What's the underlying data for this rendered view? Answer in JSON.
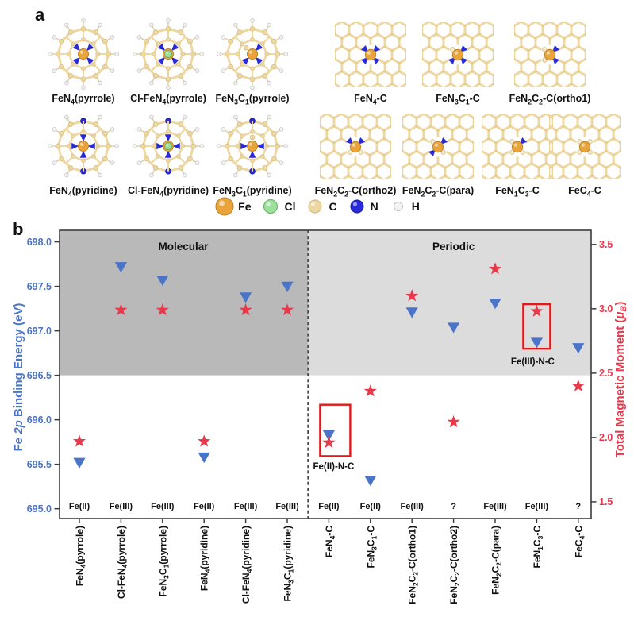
{
  "panel_a": {
    "label": "a",
    "rows": [
      {
        "items": [
          {
            "label": "FeN4(pyrrole)",
            "kind": "porphyrin",
            "ring": "pyrrole",
            "inner_n": 4,
            "cl": false
          },
          {
            "label": "Cl-FeN4(pyrrole)",
            "kind": "porphyrin",
            "ring": "pyrrole",
            "inner_n": 4,
            "cl": true
          },
          {
            "label": "FeN3C1(pyrrole)",
            "kind": "porphyrin",
            "ring": "pyrrole",
            "inner_n": 3,
            "cl": false
          },
          {
            "label": "FeN4-C",
            "kind": "graphene",
            "n_sites": [
              "NE",
              "NW",
              "SW",
              "SE"
            ]
          },
          {
            "label": "FeN3C1-C",
            "kind": "graphene",
            "n_sites": [
              "NE",
              "SW",
              "SE"
            ]
          },
          {
            "label": "FeN2C2-C(ortho1)",
            "kind": "graphene",
            "n_sites": [
              "NE",
              "SE"
            ]
          }
        ]
      },
      {
        "items": [
          {
            "label": "FeN4(pyridine)",
            "kind": "porphyrin",
            "ring": "pyridine",
            "inner_n": 4,
            "cl": false
          },
          {
            "label": "Cl-FeN4(pyridine)",
            "kind": "porphyrin",
            "ring": "pyridine",
            "inner_n": 4,
            "cl": true
          },
          {
            "label": "FeN3C1(pyridine)",
            "kind": "porphyrin",
            "ring": "pyridine",
            "inner_n": 3,
            "cl": false
          },
          {
            "label": "FeN2C2-C(ortho2)",
            "kind": "graphene",
            "n_sites": [
              "NW",
              "NE"
            ]
          },
          {
            "label": "FeN2C2-C(para)",
            "kind": "graphene",
            "n_sites": [
              "NE",
              "SW"
            ]
          },
          {
            "label": "FeN1C3-C",
            "kind": "graphene",
            "n_sites": [
              "NE"
            ]
          },
          {
            "label": "FeC4-C",
            "kind": "graphene",
            "n_sites": []
          }
        ]
      }
    ],
    "legend": [
      {
        "label": "Fe",
        "color": "#e9a53b",
        "stroke": "#bd8426",
        "r": 11
      },
      {
        "label": "Cl",
        "color": "#9ce09c",
        "stroke": "#63b063",
        "r": 8.5
      },
      {
        "label": "C",
        "color": "#ecd8a2",
        "stroke": "#cdb174",
        "r": 8
      },
      {
        "label": "N",
        "color": "#2a2ad6",
        "stroke": "#1b1b9e",
        "r": 8
      },
      {
        "label": "H",
        "color": "#f2f2f2",
        "stroke": "#bfbfbf",
        "r": 5.5
      }
    ],
    "atom_colors": {
      "Fe": "#e9a53b",
      "Cl": "#9ce09c",
      "C": "#ecd8a2",
      "N": "#2a2ad6",
      "H": "#f2f2f2",
      "bond": "#eed7a0"
    }
  },
  "panel_b": {
    "label": "b",
    "chart_data": {
      "type": "scatter",
      "categories": [
        "FeN4(pyrrole)",
        "Cl-FeN4(pyrrole)",
        "FeN3C1(pyrrole)",
        "FeN4(pyridine)",
        "Cl-FeN4(pyridine)",
        "FeN3C1(pyridine)",
        "FeN4-C",
        "FeN3C1-C",
        "FeN2C2-C(ortho1)",
        "FeN2C2-C(ortho2)",
        "FeN2C2-C(para)",
        "FeN1C3-C",
        "FeC4-C"
      ],
      "oxidation_labels": [
        "Fe(II)",
        "Fe(III)",
        "Fe(III)",
        "Fe(II)",
        "Fe(III)",
        "Fe(III)",
        "Fe(II)",
        "Fe(II)",
        "Fe(III)",
        "?",
        "Fe(III)",
        "Fe(III)",
        "?"
      ],
      "regions": [
        {
          "label": "Molecular",
          "span": [
            0,
            5
          ],
          "shade": "#b9b9b9"
        },
        {
          "label": "Periodic",
          "span": [
            6,
            12
          ],
          "shade": "#dcdcdc"
        }
      ],
      "shade_lower_limit_left_axis": 696.5,
      "series": [
        {
          "name": "Fe 2p Binding Energy (eV)",
          "axis": "left",
          "marker": "triangle-down",
          "color": "#4a74c8",
          "values": [
            695.52,
            697.72,
            697.57,
            695.58,
            697.38,
            697.5,
            695.83,
            695.32,
            697.21,
            697.04,
            697.31,
            696.87,
            696.81
          ]
        },
        {
          "name": "Total Magnetic Moment (μB)",
          "axis": "right",
          "marker": "star",
          "color": "#e8394b",
          "values": [
            1.97,
            2.99,
            2.99,
            1.97,
            2.99,
            2.99,
            1.96,
            2.36,
            3.1,
            2.12,
            3.31,
            2.98,
            2.4
          ]
        }
      ],
      "left_axis": {
        "title": {
          "pre": "Fe ",
          "italic": "2p",
          "post": " Binding Energy (eV)"
        },
        "color": "#4a74c8",
        "ticks": [
          695.0,
          695.5,
          696.0,
          696.5,
          697.0,
          697.5,
          698.0
        ],
        "range": [
          694.89,
          698.13
        ]
      },
      "right_axis": {
        "title": {
          "pre": "Total Magnetic Moment (",
          "italic": "μ",
          "sub": "B",
          "post": ")"
        },
        "color": "#e8394b",
        "ticks": [
          1.5,
          2.0,
          2.5,
          3.0,
          3.5
        ],
        "range": [
          1.37,
          3.61
        ]
      },
      "separator_after_index": 5,
      "annotations": [
        {
          "label": "Fe(II)-N-C",
          "category_index": 6
        },
        {
          "label": "Fe(III)-N-C",
          "category_index": 11
        }
      ],
      "annotation_box_color": "#e81717",
      "grid": false,
      "legend_position": "none"
    }
  }
}
